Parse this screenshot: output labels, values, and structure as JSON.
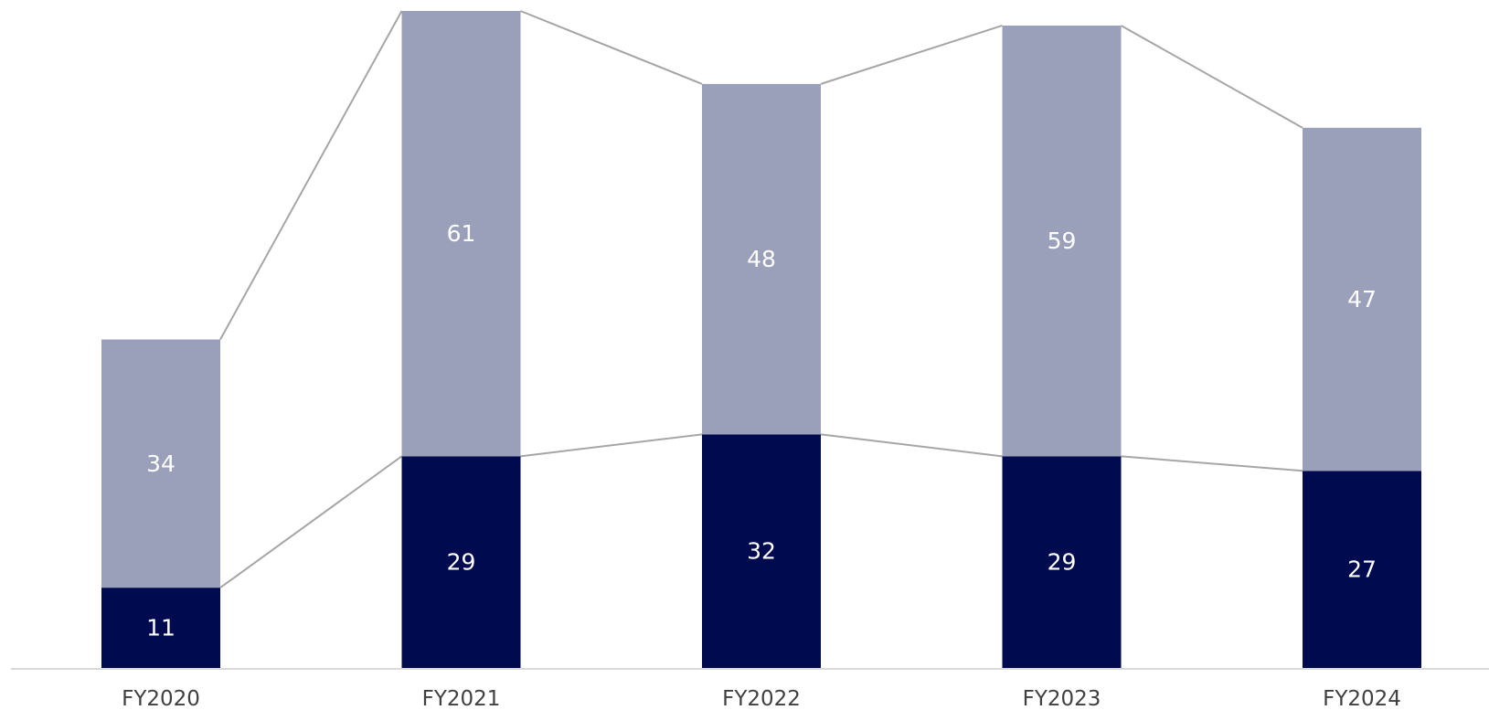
{
  "chart_data": {
    "type": "bar",
    "stacked": true,
    "categories": [
      "FY2020",
      "FY2021",
      "FY2022",
      "FY2023",
      "FY2024"
    ],
    "series": [
      {
        "values": [
          11,
          29,
          32,
          29,
          27
        ],
        "color": "#000b4f"
      },
      {
        "values": [
          34,
          61,
          48,
          59,
          47
        ],
        "color": "#9a9fba"
      }
    ],
    "ylim": [
      0,
      90
    ],
    "grid": false,
    "legend": "none",
    "connector_lines": true,
    "connector_color": "#a6a6a6",
    "axis_line_color": "#d9d9d9",
    "data_labels": true
  }
}
